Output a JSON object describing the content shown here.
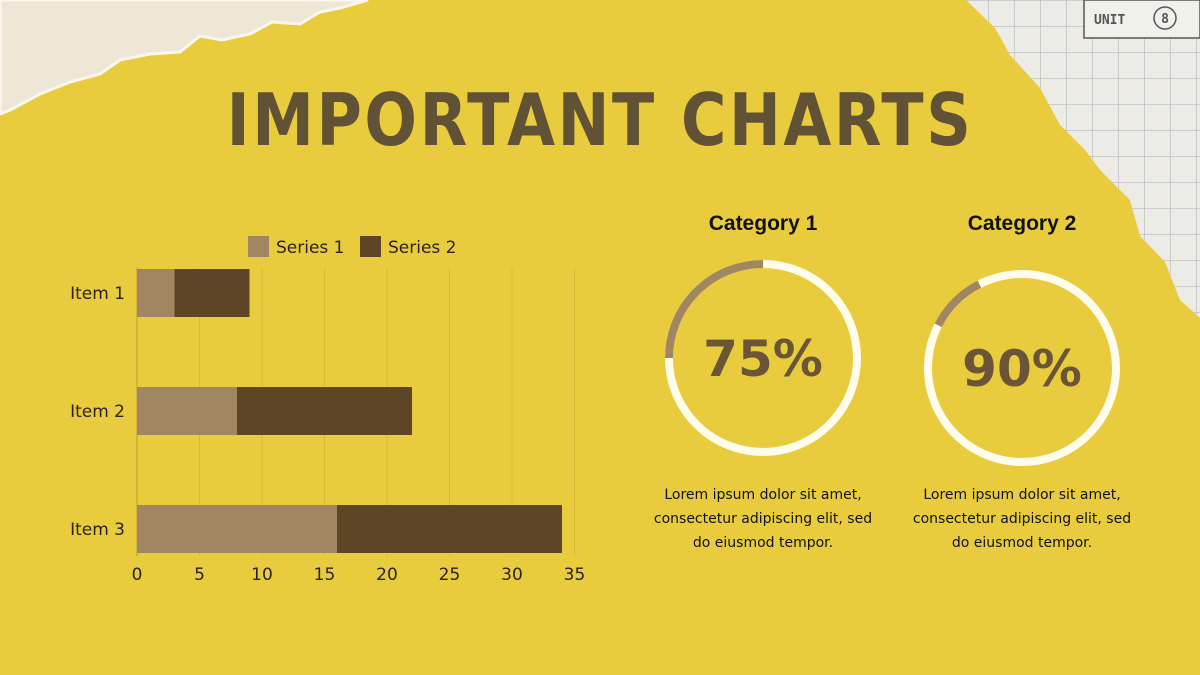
{
  "slide": {
    "title": "IMPORTANT CHARTS",
    "stamp": {
      "unit_label": "UNIT",
      "unit_number": "8"
    }
  },
  "colors": {
    "background": "#E8CC3E",
    "series1": "#A18662",
    "series2": "#5E4526",
    "ring_track": "#FFFCEB",
    "ring_value": "#A18662",
    "title": "#625235"
  },
  "chart_data": [
    {
      "type": "bar",
      "orientation": "horizontal",
      "stacked": true,
      "categories": [
        "Item 1",
        "Item 2",
        "Item 3"
      ],
      "series": [
        {
          "name": "Series 1",
          "values": [
            3,
            8,
            16
          ]
        },
        {
          "name": "Series 2",
          "values": [
            6,
            14,
            18
          ]
        }
      ],
      "xlim": [
        0,
        35
      ],
      "xticks": [
        "0",
        "5",
        "10",
        "15",
        "20",
        "25",
        "30",
        "35"
      ],
      "grid": true,
      "legend": "top"
    },
    {
      "type": "pie",
      "title": "Category 1",
      "value": 75,
      "label": "75%",
      "description": "Lorem ipsum dolor sit amet, consectetur adipiscing elit, sed do eiusmod tempor."
    },
    {
      "type": "pie",
      "title": "Category 2",
      "value": 90,
      "label": "90%",
      "description": "Lorem ipsum dolor sit amet, consectetur adipiscing elit, sed do eiusmod tempor."
    }
  ]
}
